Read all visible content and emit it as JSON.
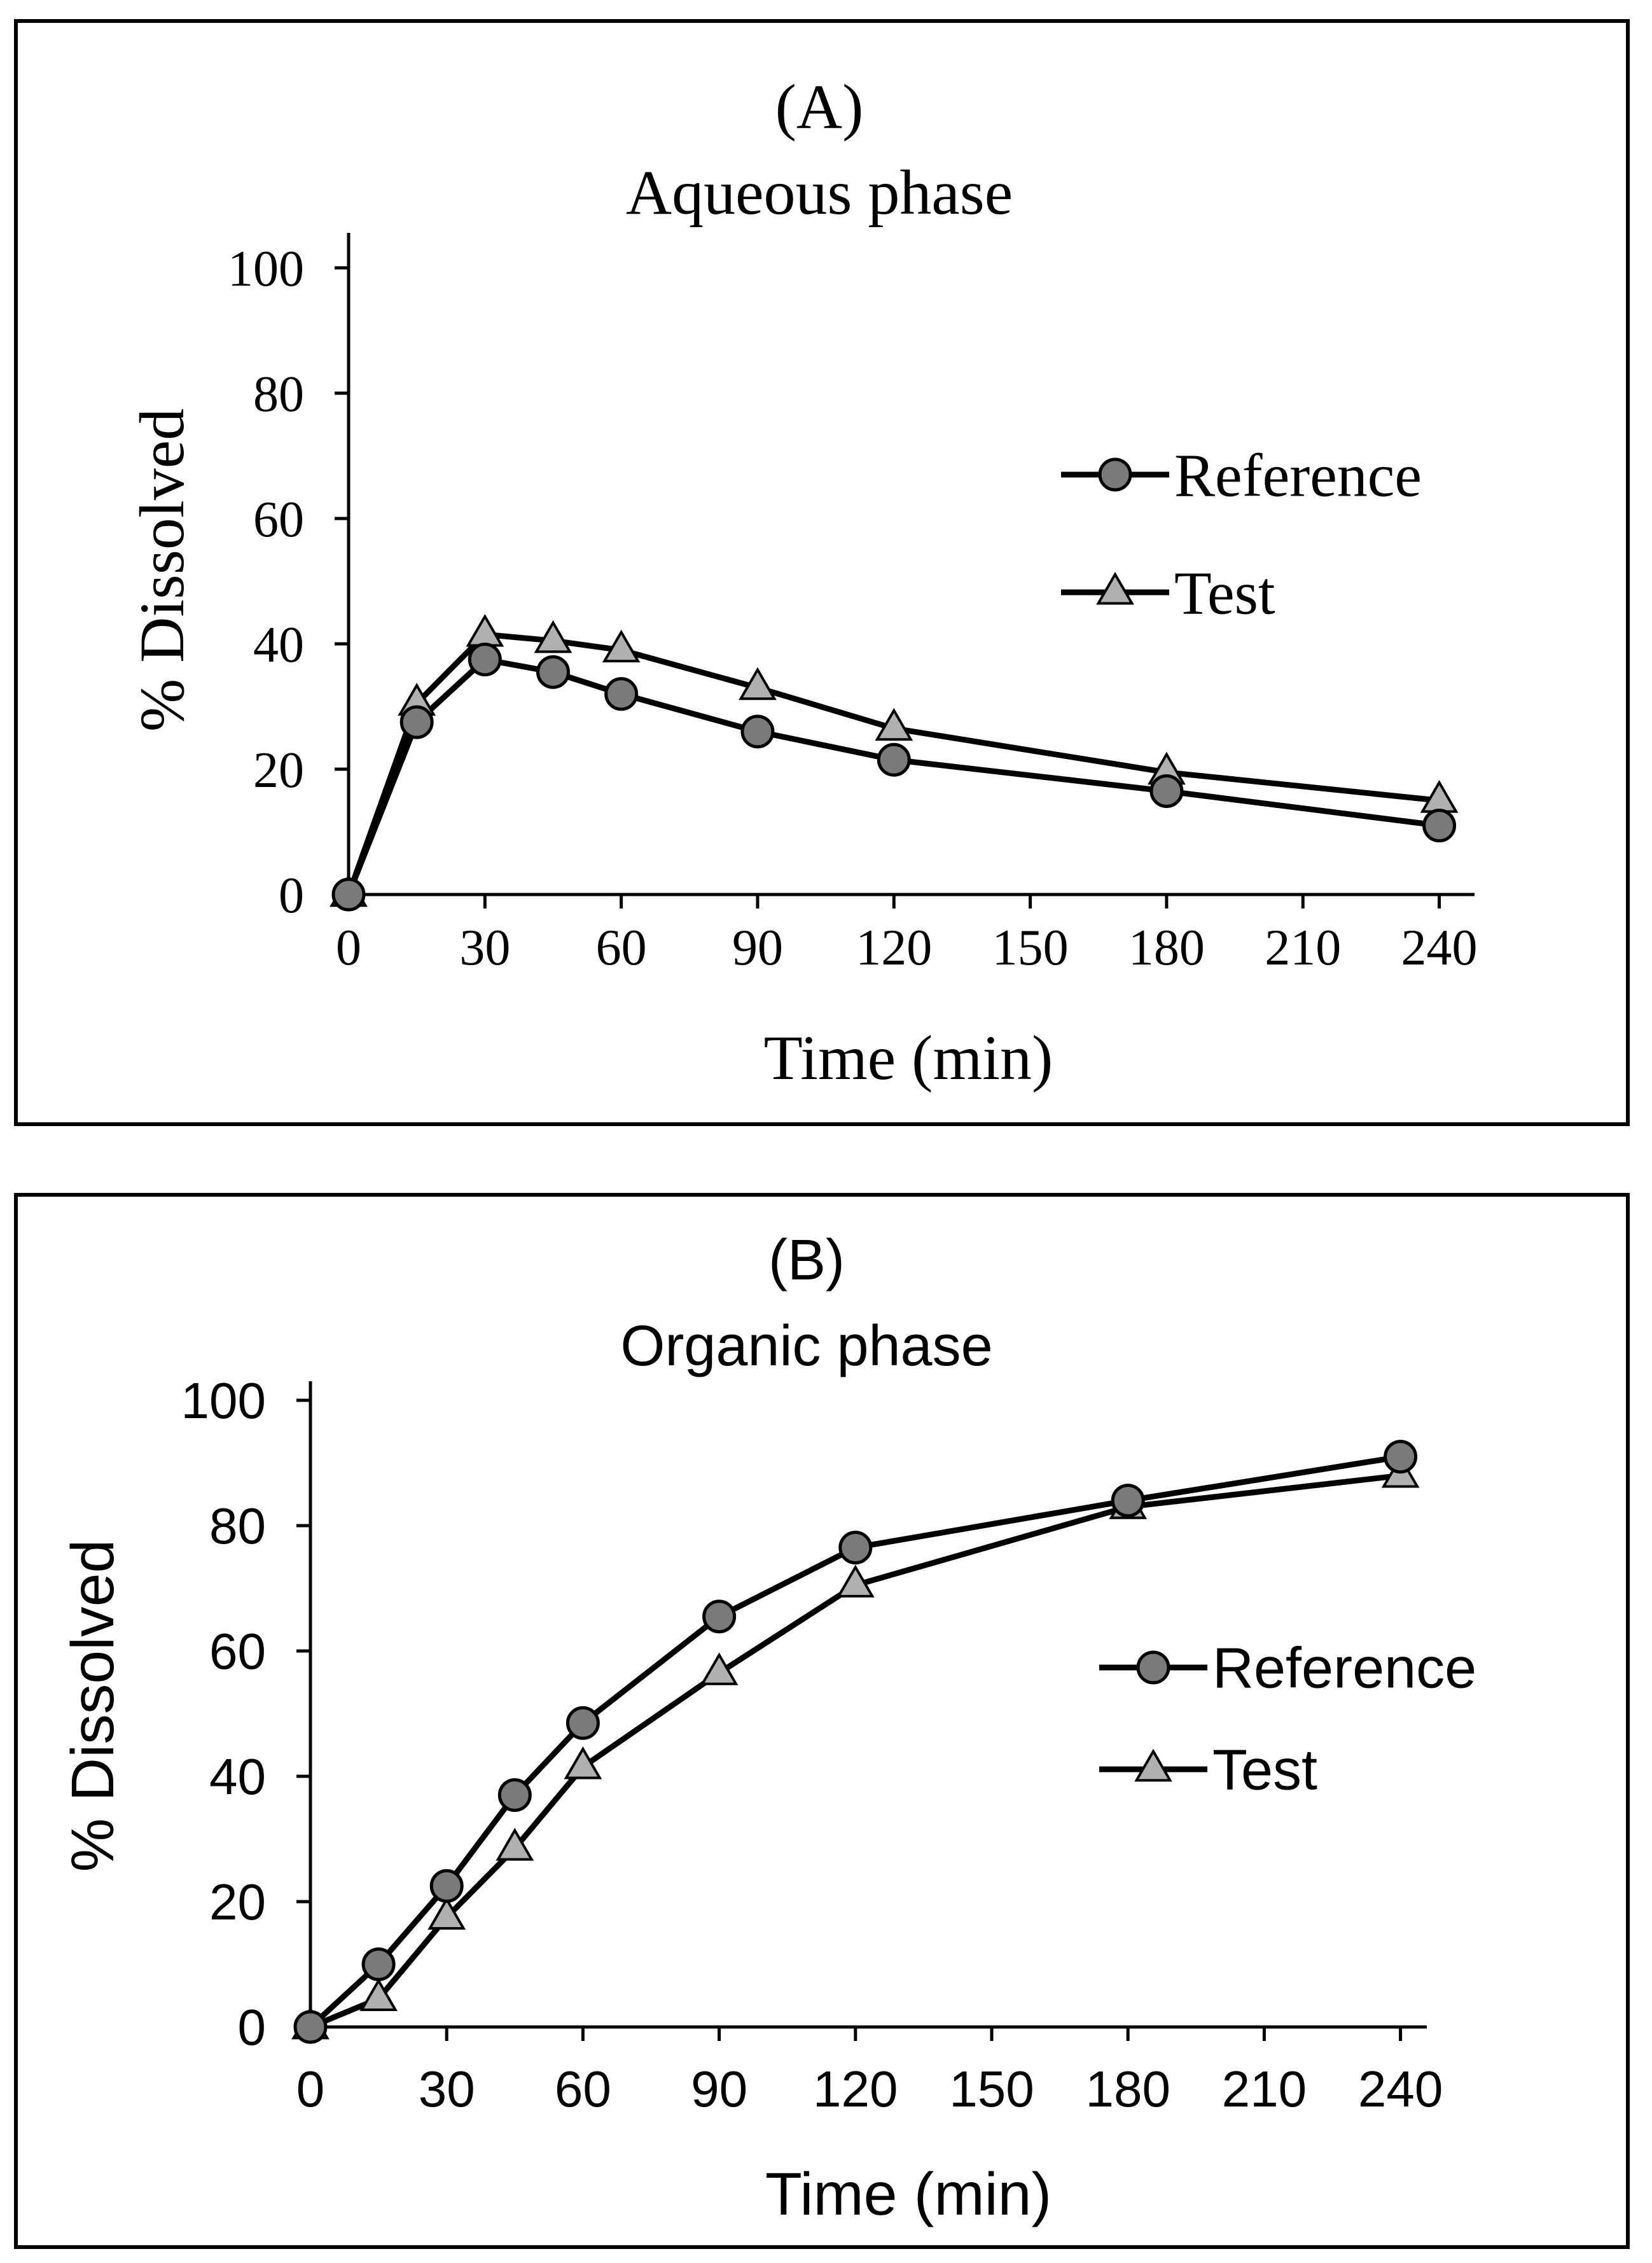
{
  "chart_data": [
    {
      "type": "line",
      "panel_label": "(A)",
      "title": "Aqueous phase",
      "xlabel": "Time (min)",
      "ylabel": "% Dissolved",
      "xlim": [
        0,
        250
      ],
      "ylim": [
        0,
        100
      ],
      "xticks": [
        0,
        30,
        60,
        90,
        120,
        150,
        180,
        210,
        240
      ],
      "yticks": [
        0,
        20,
        40,
        60,
        80,
        100
      ],
      "x": [
        0,
        15,
        30,
        45,
        60,
        90,
        120,
        180,
        240
      ],
      "series": [
        {
          "name": "Reference",
          "marker": "circle",
          "values": [
            0,
            27.5,
            37.5,
            35.5,
            32,
            26,
            21.5,
            16.5,
            11
          ]
        },
        {
          "name": "Test",
          "marker": "triangle",
          "values": [
            0,
            30.5,
            41.5,
            40.5,
            39,
            33,
            26.5,
            19.5,
            15
          ]
        }
      ],
      "legend_position": "right",
      "grid": false,
      "colors": {
        "reference_marker": "#7a7a7a",
        "test_marker": "#b0b0b0",
        "line": "#000000"
      }
    },
    {
      "type": "line",
      "panel_label": "(B)",
      "title": "Organic phase",
      "xlabel": "Time (min)",
      "ylabel": "% Dissolved",
      "xlim": [
        0,
        250
      ],
      "ylim": [
        0,
        100
      ],
      "xticks": [
        0,
        30,
        60,
        90,
        120,
        150,
        180,
        210,
        240
      ],
      "yticks": [
        0,
        20,
        40,
        60,
        80,
        100
      ],
      "x": [
        0,
        15,
        30,
        45,
        60,
        90,
        120,
        180,
        240
      ],
      "series": [
        {
          "name": "Reference",
          "marker": "circle",
          "values": [
            0,
            10,
            22.5,
            37,
            48.5,
            65.5,
            76.5,
            84,
            91
          ]
        },
        {
          "name": "Test",
          "marker": "triangle",
          "values": [
            0,
            4.5,
            17.5,
            28.5,
            41.5,
            56.5,
            70.5,
            83,
            88
          ]
        }
      ],
      "legend_position": "right",
      "grid": false,
      "colors": {
        "reference_marker": "#7a7a7a",
        "test_marker": "#b0b0b0",
        "line": "#000000"
      }
    }
  ]
}
